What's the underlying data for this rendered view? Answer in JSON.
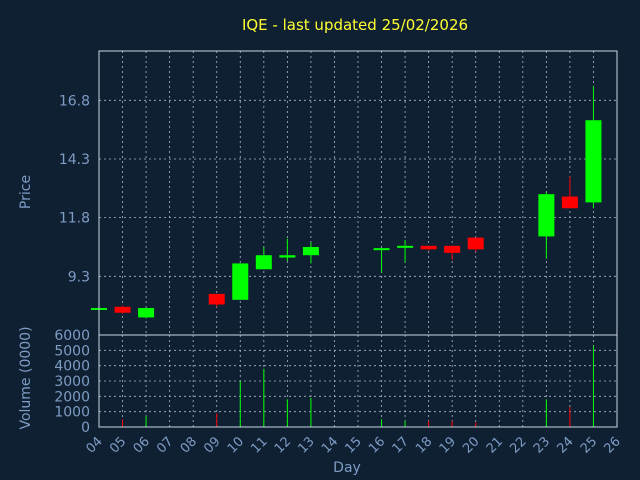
{
  "chart_data": {
    "type": "candlestick",
    "title": "IQE - last updated 25/02/2026",
    "ylabel_price": "Price",
    "ylabel_volume": "Volume (0000)",
    "xlabel": "Day",
    "price_ylim": [
      6.8,
      18.9
    ],
    "price_ticks": [
      "9.3",
      "11.8",
      "14.3",
      "16.8"
    ],
    "volume_ylim": [
      0,
      6000
    ],
    "volume_ticks": [
      "0",
      "1000",
      "2000",
      "3000",
      "4000",
      "5000",
      "6000"
    ],
    "x_labels": [
      "04",
      "05",
      "06",
      "07",
      "08",
      "09",
      "10",
      "11",
      "12",
      "13",
      "14",
      "15",
      "16",
      "17",
      "18",
      "19",
      "20",
      "21",
      "22",
      "23",
      "24",
      "25",
      "26"
    ],
    "up_color": "#00ff00",
    "down_color": "#ff0000",
    "candles": [
      {
        "day": 4,
        "open": 7.95,
        "high": 7.95,
        "low": 7.95,
        "close": 7.95
      },
      {
        "day": 5,
        "open": 8.0,
        "high": 8.05,
        "low": 7.7,
        "close": 7.75
      },
      {
        "day": 6,
        "open": 7.55,
        "high": 7.95,
        "low": 7.5,
        "close": 7.95
      },
      {
        "day": 9,
        "open": 8.55,
        "high": 8.55,
        "low": 8.0,
        "close": 8.1
      },
      {
        "day": 10,
        "open": 8.3,
        "high": 9.85,
        "low": 8.3,
        "close": 9.85
      },
      {
        "day": 11,
        "open": 9.6,
        "high": 10.55,
        "low": 9.6,
        "close": 10.2
      },
      {
        "day": 12,
        "open": 10.1,
        "high": 10.9,
        "low": 9.95,
        "close": 10.2
      },
      {
        "day": 13,
        "open": 10.2,
        "high": 10.75,
        "low": 9.85,
        "close": 10.55
      },
      {
        "day": 16,
        "open": 10.45,
        "high": 10.5,
        "low": 9.45,
        "close": 10.5
      },
      {
        "day": 17,
        "open": 10.55,
        "high": 10.85,
        "low": 9.9,
        "close": 10.6
      },
      {
        "day": 18,
        "open": 10.6,
        "high": 10.6,
        "low": 10.4,
        "close": 10.45
      },
      {
        "day": 19,
        "open": 10.6,
        "high": 10.6,
        "low": 10.0,
        "close": 10.3
      },
      {
        "day": 20,
        "open": 10.95,
        "high": 10.95,
        "low": 10.35,
        "close": 10.45
      },
      {
        "day": 23,
        "open": 11.0,
        "high": 12.9,
        "low": 10.05,
        "close": 12.8
      },
      {
        "day": 24,
        "open": 12.7,
        "high": 13.55,
        "low": 12.2,
        "close": 12.2
      },
      {
        "day": 25,
        "open": 12.45,
        "high": 17.4,
        "low": 12.2,
        "close": 15.95
      }
    ],
    "volume": [
      {
        "day": 5,
        "value": 500,
        "dir": "down"
      },
      {
        "day": 6,
        "value": 700,
        "dir": "up"
      },
      {
        "day": 9,
        "value": 900,
        "dir": "down"
      },
      {
        "day": 10,
        "value": 3000,
        "dir": "up"
      },
      {
        "day": 11,
        "value": 3800,
        "dir": "up"
      },
      {
        "day": 12,
        "value": 1800,
        "dir": "up"
      },
      {
        "day": 13,
        "value": 1900,
        "dir": "up"
      },
      {
        "day": 16,
        "value": 500,
        "dir": "up"
      },
      {
        "day": 17,
        "value": 400,
        "dir": "up"
      },
      {
        "day": 18,
        "value": 400,
        "dir": "down"
      },
      {
        "day": 19,
        "value": 400,
        "dir": "down"
      },
      {
        "day": 20,
        "value": 300,
        "dir": "down"
      },
      {
        "day": 23,
        "value": 1800,
        "dir": "up"
      },
      {
        "day": 24,
        "value": 1300,
        "dir": "down"
      },
      {
        "day": 25,
        "value": 5300,
        "dir": "up"
      }
    ],
    "grid": true
  }
}
